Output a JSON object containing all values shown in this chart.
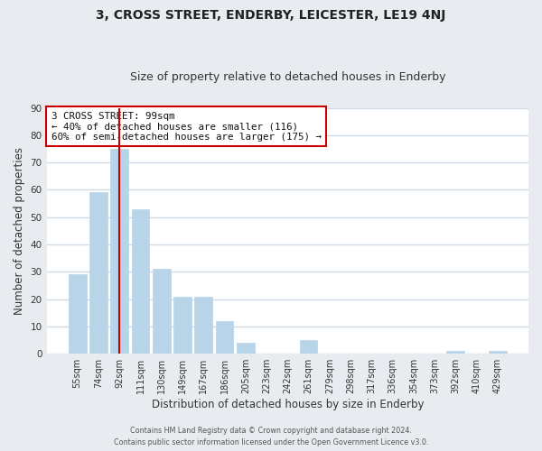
{
  "title": "3, CROSS STREET, ENDERBY, LEICESTER, LE19 4NJ",
  "subtitle": "Size of property relative to detached houses in Enderby",
  "xlabel": "Distribution of detached houses by size in Enderby",
  "ylabel": "Number of detached properties",
  "categories": [
    "55sqm",
    "74sqm",
    "92sqm",
    "111sqm",
    "130sqm",
    "149sqm",
    "167sqm",
    "186sqm",
    "205sqm",
    "223sqm",
    "242sqm",
    "261sqm",
    "279sqm",
    "298sqm",
    "317sqm",
    "336sqm",
    "354sqm",
    "373sqm",
    "392sqm",
    "410sqm",
    "429sqm"
  ],
  "values": [
    29,
    59,
    75,
    53,
    31,
    21,
    21,
    12,
    4,
    0,
    0,
    5,
    0,
    0,
    0,
    0,
    0,
    0,
    1,
    0,
    1
  ],
  "bar_color": "#b8d4e8",
  "bar_edge_color": "#b8d4e8",
  "vline_x": 2,
  "vline_color": "#cc0000",
  "ylim": [
    0,
    90
  ],
  "yticks": [
    0,
    10,
    20,
    30,
    40,
    50,
    60,
    70,
    80,
    90
  ],
  "annotation_title": "3 CROSS STREET: 99sqm",
  "annotation_line1": "← 40% of detached houses are smaller (116)",
  "annotation_line2": "60% of semi-detached houses are larger (175) →",
  "annotation_box_facecolor": "#ffffff",
  "annotation_box_edgecolor": "#cc0000",
  "footer1": "Contains HM Land Registry data © Crown copyright and database right 2024.",
  "footer2": "Contains public sector information licensed under the Open Government Licence v3.0.",
  "background_color": "#e8ecf0",
  "plot_background": "#ffffff",
  "grid_color": "#d0dae4",
  "title_fontsize": 10,
  "subtitle_fontsize": 9,
  "tick_fontsize": 7,
  "label_fontsize": 8.5
}
